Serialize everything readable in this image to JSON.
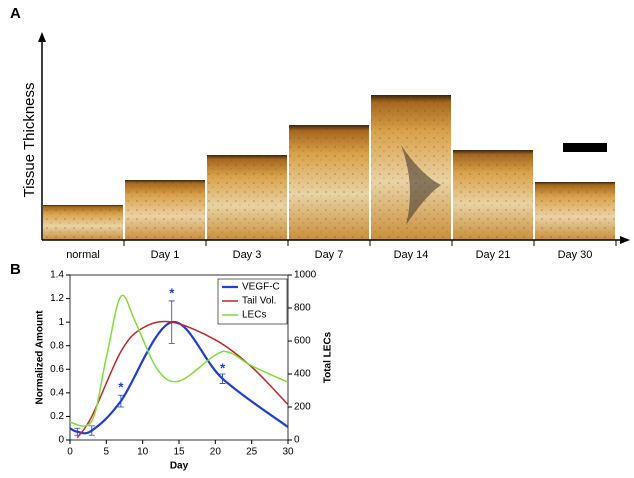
{
  "panel_a": {
    "label": "A",
    "y_axis_label": "Tissue Thickness",
    "categories": [
      "normal",
      "Day 1",
      "Day 3",
      "Day 7",
      "Day 14",
      "Day 21",
      "Day 30"
    ]
  },
  "chart_data": {
    "type": "line",
    "panel_label": "B",
    "x_label": "Day",
    "y_label": "Normalized Amount",
    "y2_label": "Total LECs",
    "xlim": [
      0,
      30
    ],
    "xticks": [
      0,
      5,
      10,
      15,
      20,
      25,
      30
    ],
    "ylim": [
      0,
      1.4
    ],
    "yticks": [
      0,
      0.2,
      0.4,
      0.6,
      0.8,
      1,
      1.2,
      1.4
    ],
    "y2lim": [
      0,
      1000
    ],
    "y2ticks": [
      0,
      200,
      400,
      600,
      800,
      1000
    ],
    "legend": "upper right",
    "series": [
      {
        "name": "VEGF-C",
        "color": "#1f3fd0",
        "x": [
          0,
          1,
          3,
          7,
          14,
          21,
          30
        ],
        "values": [
          0.1,
          0.07,
          0.08,
          0.33,
          1.0,
          0.52,
          0.11
        ],
        "errors": [
          null,
          0.03,
          0.04,
          0.05,
          0.18,
          0.04,
          null
        ]
      },
      {
        "name": "Tail Vol.",
        "color": "#c0282b",
        "x": [
          1,
          3,
          7,
          10,
          14,
          20,
          25,
          30
        ],
        "values": [
          0.02,
          0.2,
          0.75,
          0.95,
          1.0,
          0.85,
          0.62,
          0.3
        ]
      },
      {
        "name": "LECs",
        "color": "#7ce03a",
        "axis": "y2",
        "x": [
          0,
          3,
          5,
          7,
          9,
          12,
          15,
          20,
          22,
          25,
          30
        ],
        "values": [
          107,
          115,
          500,
          870,
          715,
          430,
          357,
          515,
          530,
          450,
          350
        ]
      }
    ],
    "annotations": [
      {
        "text": "*",
        "x": 7,
        "y": 0.44
      },
      {
        "text": "*",
        "x": 14,
        "y": 1.24
      },
      {
        "text": "*",
        "x": 21,
        "y": 0.6
      }
    ]
  }
}
